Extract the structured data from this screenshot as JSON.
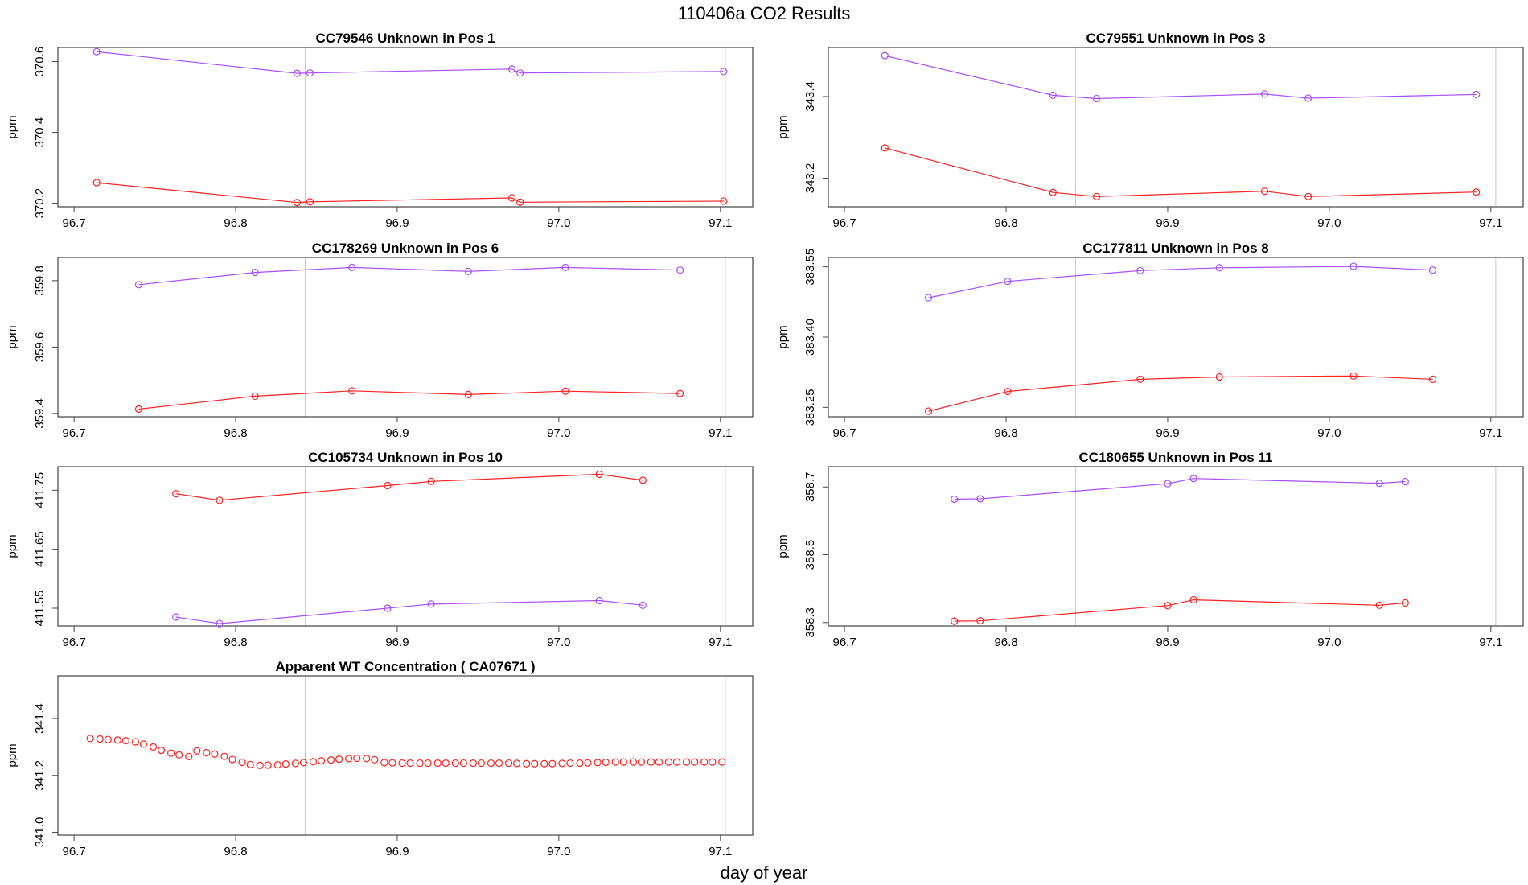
{
  "title": "110406a  CO2 Results",
  "xlabel": "day of year",
  "colors": {
    "upper": "#a84dff",
    "lower": "#ff2020",
    "frame": "#444444",
    "vline": "#c8c8c8"
  },
  "chart_data": [
    {
      "type": "line",
      "title": "CC79546    Unknown in Pos 1",
      "ylabel": "ppm",
      "xlim": [
        96.69,
        97.12
      ],
      "ylim": [
        370.19,
        370.64
      ],
      "xticks": [
        "96.7",
        "96.8",
        "96.9",
        "97.0",
        "97.1"
      ],
      "yticks": [
        "370.2",
        "370.4",
        "370.6"
      ],
      "vlines": [
        96.843,
        97.103
      ],
      "series": [
        {
          "name": "upper",
          "color": "#a84dff",
          "x": [
            96.714,
            96.838,
            96.846,
            96.971,
            96.976,
            97.102
          ],
          "y": [
            370.628,
            370.567,
            370.568,
            370.579,
            370.568,
            370.572
          ]
        },
        {
          "name": "lower",
          "color": "#ff2020",
          "x": [
            96.714,
            96.838,
            96.846,
            96.971,
            96.976,
            97.102
          ],
          "y": [
            370.258,
            370.202,
            370.204,
            370.215,
            370.203,
            370.206
          ]
        }
      ]
    },
    {
      "type": "line",
      "title": "CC79551    Unknown in Pos 3",
      "ylabel": "ppm",
      "xlim": [
        96.69,
        97.12
      ],
      "ylim": [
        343.13,
        343.52
      ],
      "xticks": [
        "96.7",
        "96.8",
        "96.9",
        "97.0",
        "97.1"
      ],
      "yticks": [
        "343.2",
        "343.4"
      ],
      "vlines": [
        96.843,
        97.103
      ],
      "series": [
        {
          "name": "upper",
          "color": "#a84dff",
          "x": [
            96.725,
            96.829,
            96.856,
            96.96,
            96.987,
            97.091
          ],
          "y": [
            343.5,
            343.403,
            343.395,
            343.406,
            343.396,
            343.405
          ]
        },
        {
          "name": "lower",
          "color": "#ff2020",
          "x": [
            96.725,
            96.829,
            96.856,
            96.96,
            96.987,
            97.091
          ],
          "y": [
            343.274,
            343.165,
            343.155,
            343.168,
            343.155,
            343.166
          ]
        }
      ]
    },
    {
      "type": "line",
      "title": "CC178269    Unknown in Pos 6",
      "ylabel": "ppm",
      "xlim": [
        96.69,
        97.12
      ],
      "ylim": [
        359.39,
        359.87
      ],
      "xticks": [
        "96.7",
        "96.8",
        "96.9",
        "97.0",
        "97.1"
      ],
      "yticks": [
        "359.4",
        "359.6",
        "359.8"
      ],
      "vlines": [
        96.843,
        97.103
      ],
      "series": [
        {
          "name": "upper",
          "color": "#a84dff",
          "x": [
            96.74,
            96.812,
            96.872,
            96.944,
            97.004,
            97.075
          ],
          "y": [
            359.788,
            359.825,
            359.84,
            359.828,
            359.84,
            359.832
          ]
        },
        {
          "name": "lower",
          "color": "#ff2020",
          "x": [
            96.74,
            96.812,
            96.872,
            96.944,
            97.004,
            97.075
          ],
          "y": [
            359.413,
            359.452,
            359.468,
            359.457,
            359.467,
            359.46
          ]
        }
      ]
    },
    {
      "type": "line",
      "title": "CC177811    Unknown in Pos 8",
      "ylabel": "ppm",
      "xlim": [
        96.69,
        97.12
      ],
      "ylim": [
        383.23,
        383.57
      ],
      "xticks": [
        "96.7",
        "96.8",
        "96.9",
        "97.0",
        "97.1"
      ],
      "yticks": [
        "383.25",
        "383.40",
        "383.55"
      ],
      "vlines": [
        96.843,
        97.103
      ],
      "series": [
        {
          "name": "upper",
          "color": "#a84dff",
          "x": [
            96.752,
            96.801,
            96.883,
            96.932,
            97.015,
            97.064
          ],
          "y": [
            383.484,
            383.519,
            383.542,
            383.548,
            383.551,
            383.543
          ]
        },
        {
          "name": "lower",
          "color": "#ff2020",
          "x": [
            96.752,
            96.801,
            96.883,
            96.932,
            97.015,
            97.064
          ],
          "y": [
            383.242,
            383.284,
            383.31,
            383.315,
            383.317,
            383.31
          ]
        }
      ]
    },
    {
      "type": "line",
      "title": "CC105734    Unknown in Pos 10",
      "ylabel": "ppm",
      "xlim": [
        96.69,
        97.12
      ],
      "ylim": [
        411.52,
        411.79
      ],
      "xticks": [
        "96.7",
        "96.8",
        "96.9",
        "97.0",
        "97.1"
      ],
      "yticks": [
        "411.55",
        "411.65",
        "411.75"
      ],
      "vlines": [
        96.843,
        97.103
      ],
      "series": [
        {
          "name": "upper",
          "color": "#a84dff",
          "x": [
            96.763,
            96.79,
            96.894,
            96.921,
            97.025,
            97.052
          ],
          "y": [
            411.535,
            411.524,
            411.55,
            411.557,
            411.563,
            411.555
          ]
        },
        {
          "name": "lower",
          "color": "#ff2020",
          "x": [
            96.763,
            96.79,
            96.894,
            96.921,
            97.025,
            97.052
          ],
          "y": [
            411.744,
            411.733,
            411.758,
            411.765,
            411.777,
            411.767
          ]
        }
      ]
    },
    {
      "type": "line",
      "title": "CC180655    Unknown in Pos 11",
      "ylabel": "ppm",
      "xlim": [
        96.69,
        97.12
      ],
      "ylim": [
        358.29,
        358.76
      ],
      "xticks": [
        "96.7",
        "96.8",
        "96.9",
        "97.0",
        "97.1"
      ],
      "yticks": [
        "358.3",
        "358.5",
        "358.7"
      ],
      "vlines": [
        96.843,
        97.103
      ],
      "series": [
        {
          "name": "upper",
          "color": "#a84dff",
          "x": [
            96.768,
            96.784,
            96.9,
            96.916,
            97.031,
            97.047
          ],
          "y": [
            358.664,
            358.665,
            358.71,
            358.725,
            358.711,
            358.716
          ]
        },
        {
          "name": "lower",
          "color": "#ff2020",
          "x": [
            96.768,
            96.784,
            96.9,
            96.916,
            97.031,
            97.047
          ],
          "y": [
            358.304,
            358.305,
            358.35,
            358.367,
            358.351,
            358.358
          ]
        }
      ]
    },
    {
      "type": "scatter",
      "title": "Apparent WT Concentration ( CA07671 )",
      "ylabel": "ppm",
      "xlim": [
        96.69,
        97.12
      ],
      "ylim": [
        340.99,
        341.55
      ],
      "xticks": [
        "96.7",
        "96.8",
        "96.9",
        "97.0",
        "97.1"
      ],
      "yticks": [
        "341.0",
        "341.2",
        "341.4"
      ],
      "vlines": [
        96.843,
        97.103
      ],
      "series": [
        {
          "name": "points",
          "color": "#ff2020",
          "x": [
            96.71,
            96.716,
            96.721,
            96.727,
            96.732,
            96.738,
            96.743,
            96.749,
            96.754,
            96.76,
            96.765,
            96.771,
            96.776,
            96.782,
            96.787,
            96.793,
            96.798,
            96.804,
            96.809,
            96.815,
            96.82,
            96.826,
            96.831,
            96.837,
            96.842,
            96.848,
            96.853,
            96.859,
            96.864,
            96.87,
            96.875,
            96.881,
            96.886,
            96.892,
            96.897,
            96.903,
            96.908,
            96.914,
            96.919,
            96.925,
            96.93,
            96.936,
            96.941,
            96.947,
            96.952,
            96.958,
            96.963,
            96.969,
            96.974,
            96.98,
            96.985,
            96.991,
            96.996,
            97.002,
            97.007,
            97.013,
            97.018,
            97.024,
            97.029,
            97.035,
            97.04,
            97.046,
            97.051,
            97.057,
            97.062,
            97.068,
            97.073,
            97.079,
            97.084,
            97.09,
            97.095,
            97.101
          ],
          "y": [
            341.33,
            341.328,
            341.326,
            341.324,
            341.322,
            341.318,
            341.31,
            341.3,
            341.288,
            341.278,
            341.272,
            341.266,
            341.286,
            341.28,
            341.275,
            341.267,
            341.256,
            341.246,
            341.238,
            341.235,
            341.236,
            341.237,
            341.24,
            341.242,
            341.245,
            341.248,
            341.251,
            341.254,
            341.257,
            341.259,
            341.26,
            341.259,
            341.255,
            341.245,
            341.244,
            341.243,
            341.243,
            341.243,
            341.243,
            341.243,
            341.243,
            341.243,
            341.243,
            341.243,
            341.243,
            341.243,
            341.243,
            341.243,
            341.242,
            341.241,
            341.241,
            341.241,
            341.241,
            341.242,
            341.243,
            341.243,
            341.244,
            341.245,
            341.246,
            341.247,
            341.247,
            341.247,
            341.247,
            341.247,
            341.247,
            341.247,
            341.247,
            341.247,
            341.247,
            341.247,
            341.247,
            341.247
          ]
        }
      ]
    }
  ]
}
